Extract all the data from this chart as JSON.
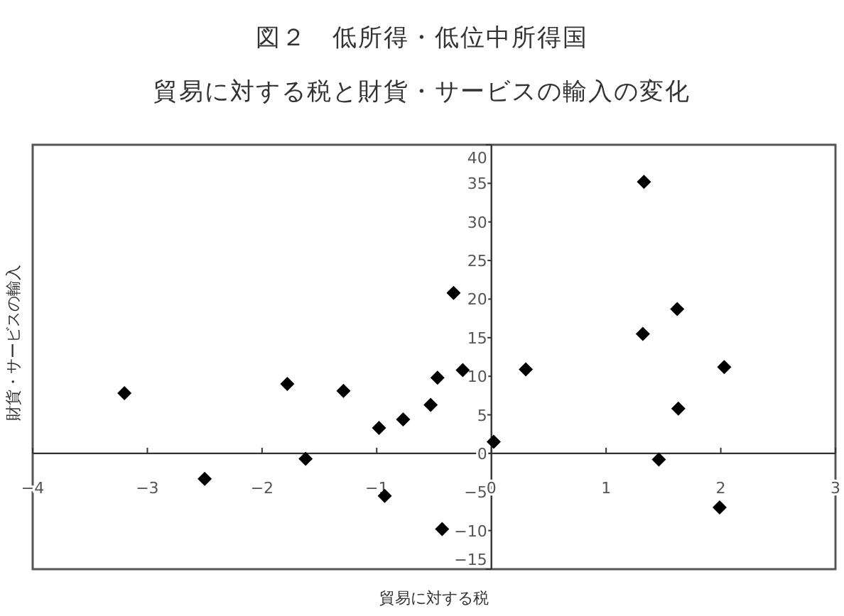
{
  "chart_data": {
    "type": "scatter",
    "title": "図２　低所得・低位中所得国",
    "subtitle": "貿易に対する税と財貨・サービスの輸入の変化",
    "xlabel": "貿易に対する税",
    "ylabel": "財貨・サービスの輸入",
    "marker": "diamond",
    "grid": false,
    "xlim": [
      -4,
      3
    ],
    "xticks": [
      -4,
      -3,
      -2,
      -1,
      0,
      1,
      2,
      3
    ],
    "ylim": [
      -15,
      40
    ],
    "yticks": [
      -15,
      -10,
      -5,
      0,
      5,
      10,
      15,
      20,
      25,
      30,
      35,
      40
    ],
    "series": [
      {
        "color": "#000000",
        "x": [
          -3.2,
          -2.5,
          -1.78,
          -1.62,
          -1.29,
          -0.98,
          -0.93,
          -0.77,
          -0.53,
          -0.47,
          -0.43,
          -0.33,
          -0.25,
          0.02,
          0.3,
          1.33,
          1.32,
          1.46,
          1.62,
          1.63,
          2.03,
          1.99
        ],
        "values": [
          7.8,
          -3.3,
          9.0,
          -0.7,
          8.1,
          3.3,
          -5.5,
          4.4,
          6.3,
          9.8,
          -9.8,
          20.8,
          10.8,
          1.5,
          10.9,
          35.2,
          15.5,
          -0.8,
          18.7,
          5.8,
          11.2,
          -7.0
        ]
      }
    ]
  }
}
